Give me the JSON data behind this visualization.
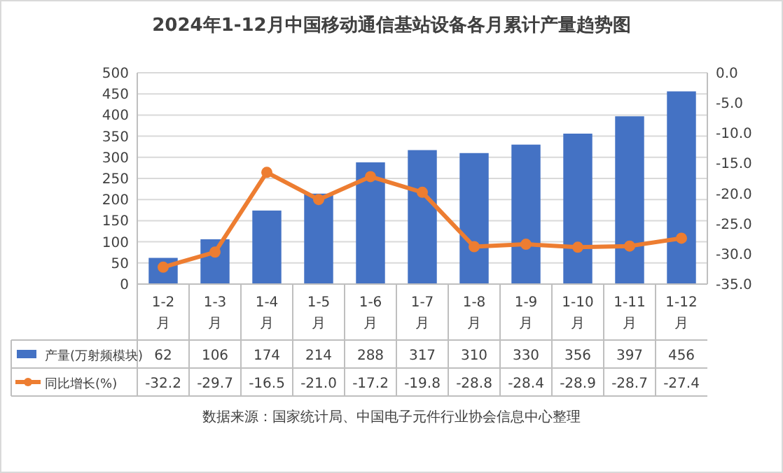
{
  "chart_data": {
    "type": "bar",
    "title": "2024年1-12月中国移动通信基站设备各月累计产量趋势图",
    "categories": [
      "1-2月",
      "1-3月",
      "1-4月",
      "1-5月",
      "1-6月",
      "1-7月",
      "1-8月",
      "1-9月",
      "1-10月",
      "1-11月",
      "1-12月"
    ],
    "series": [
      {
        "name": "产量(万射频模块)",
        "color": "#4472c4",
        "values": [
          62,
          106,
          174,
          214,
          288,
          317,
          310,
          330,
          356,
          397,
          456
        ]
      },
      {
        "name": "同比增长(%)",
        "type": "line",
        "axis": "y2",
        "color": "#ed7d31",
        "values": [
          -32.2,
          -29.7,
          -16.5,
          -21.0,
          -17.2,
          -19.8,
          -28.8,
          -28.4,
          -28.9,
          -28.7,
          -27.4
        ],
        "value_labels": [
          "-32.2",
          "-29.7",
          "-16.5",
          "-21.0",
          "-17.2",
          "-19.8",
          "-28.8",
          "-28.4",
          "-28.9",
          "-28.7",
          "-27.4"
        ]
      }
    ],
    "ylim": [
      0,
      500
    ],
    "yticks": [
      0,
      50,
      100,
      150,
      200,
      250,
      300,
      350,
      400,
      450,
      500
    ],
    "y2lim": [
      -35,
      0
    ],
    "y2ticks": [
      {
        "value": 0,
        "label": "0.0"
      },
      {
        "value": -5,
        "label": "-5.0"
      },
      {
        "value": -10,
        "label": "-10.0"
      },
      {
        "value": -15,
        "label": "-15.0"
      },
      {
        "value": -20,
        "label": "-20.0"
      },
      {
        "value": -25,
        "label": "-25.0"
      },
      {
        "value": -30,
        "label": "-30.0"
      },
      {
        "value": -35,
        "label": "-35.0"
      }
    ],
    "grid": "y",
    "marker": "circle",
    "data_labels": true,
    "legend": "bottom",
    "annotations": [
      "数据来源：国家统计局、中国电子元件行业协会信息中心整理"
    ]
  }
}
